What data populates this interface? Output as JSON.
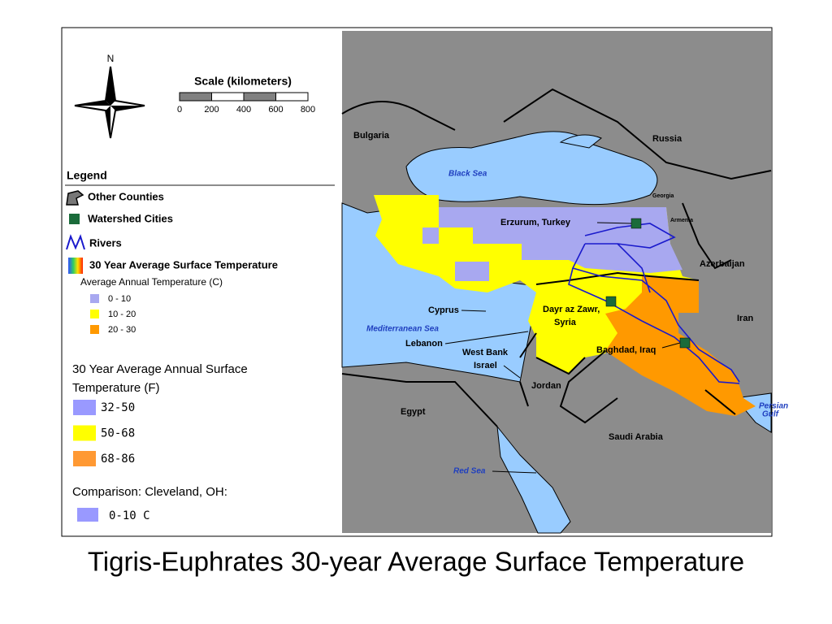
{
  "title": "Tigris-Euphrates 30-year Average Surface Temperature",
  "compass": {
    "north": "N"
  },
  "scale": {
    "title": "Scale (kilometers)",
    "ticks": [
      0,
      200,
      400,
      600,
      800
    ]
  },
  "legend": {
    "title": "Legend",
    "items": [
      "Other Counties",
      "Watershed Cities",
      "Rivers",
      "30 Year Average Surface Temperature"
    ],
    "subtitle": "Average Annual Temperature (C)",
    "classes": [
      {
        "label": "0 - 10",
        "color": "#a8a8f0"
      },
      {
        "label": "10 - 20",
        "color": "#ffff00"
      },
      {
        "label": "20 - 30",
        "color": "#ff9900"
      }
    ]
  },
  "fahrenheit": {
    "title": [
      "30 Year Average Annual Surface",
      "Temperature (F)"
    ],
    "classes": [
      {
        "label": "32-50",
        "color": "#9999ff"
      },
      {
        "label": "50-68",
        "color": "#ffff00"
      },
      {
        "label": "68-86",
        "color": "#ff9933"
      }
    ]
  },
  "comparison": {
    "title": "Comparison: Cleveland, OH:",
    "label": "0-10 C",
    "color": "#9999ff"
  },
  "map": {
    "labels": [
      "Bulgaria",
      "Russia",
      "Black Sea",
      "Georgia",
      "Armenia",
      "Erzurum, Turkey",
      "Azerbaijan",
      "Iran",
      "Cyprus",
      "Mediterranean Sea",
      "Dayr az Zawr,",
      "Syria",
      "Lebanon",
      "West Bank",
      "Israel",
      "Jordan",
      "Baghdad, Iraq",
      "Persian",
      "Gulf",
      "Egypt",
      "Saudi Arabia",
      "Red Sea"
    ]
  }
}
